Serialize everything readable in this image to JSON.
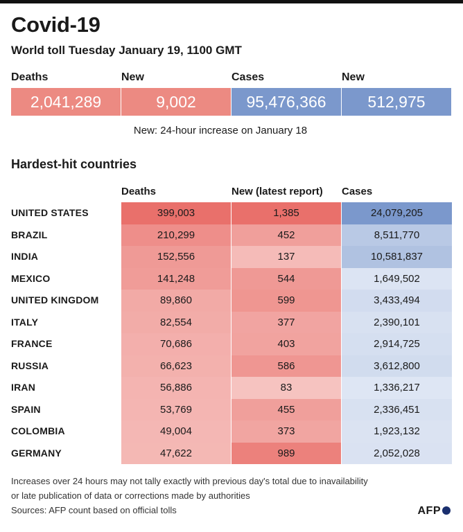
{
  "header": {
    "title": "Covid-19",
    "subtitle": "World toll Tuesday January 19, 1100 GMT"
  },
  "summary": {
    "labels": [
      "Deaths",
      "New",
      "Cases",
      "New"
    ],
    "values": [
      "2,041,289",
      "9,002",
      "95,476,366",
      "512,975"
    ],
    "colors": [
      "#ec8a82",
      "#ec8a82",
      "#7b98cc",
      "#7b98cc"
    ],
    "note": "New: 24-hour increase on January 18"
  },
  "table": {
    "section_title": "Hardest-hit countries",
    "headers": [
      "Deaths",
      "New (latest report)",
      "Cases"
    ],
    "rows": [
      {
        "country": "UNITED STATES",
        "deaths": "399,003",
        "new": "1,385",
        "cases": "24,079,205",
        "deaths_n": 399003,
        "new_n": 1385,
        "cases_n": 24079205
      },
      {
        "country": "BRAZIL",
        "deaths": "210,299",
        "new": "452",
        "cases": "8,511,770",
        "deaths_n": 210299,
        "new_n": 452,
        "cases_n": 8511770
      },
      {
        "country": "INDIA",
        "deaths": "152,556",
        "new": "137",
        "cases": "10,581,837",
        "deaths_n": 152556,
        "new_n": 137,
        "cases_n": 10581837
      },
      {
        "country": "MEXICO",
        "deaths": "141,248",
        "new": "544",
        "cases": "1,649,502",
        "deaths_n": 141248,
        "new_n": 544,
        "cases_n": 1649502
      },
      {
        "country": "UNITED KINGDOM",
        "deaths": "89,860",
        "new": "599",
        "cases": "3,433,494",
        "deaths_n": 89860,
        "new_n": 599,
        "cases_n": 3433494
      },
      {
        "country": "ITALY",
        "deaths": "82,554",
        "new": "377",
        "cases": "2,390,101",
        "deaths_n": 82554,
        "new_n": 377,
        "cases_n": 2390101
      },
      {
        "country": "FRANCE",
        "deaths": "70,686",
        "new": "403",
        "cases": "2,914,725",
        "deaths_n": 70686,
        "new_n": 403,
        "cases_n": 2914725
      },
      {
        "country": "RUSSIA",
        "deaths": "66,623",
        "new": "586",
        "cases": "3,612,800",
        "deaths_n": 66623,
        "new_n": 586,
        "cases_n": 3612800
      },
      {
        "country": "IRAN",
        "deaths": "56,886",
        "new": "83",
        "cases": "1,336,217",
        "deaths_n": 56886,
        "new_n": 83,
        "cases_n": 1336217
      },
      {
        "country": "SPAIN",
        "deaths": "53,769",
        "new": "455",
        "cases": "2,336,451",
        "deaths_n": 53769,
        "new_n": 455,
        "cases_n": 2336451
      },
      {
        "country": "COLOMBIA",
        "deaths": "49,004",
        "new": "373",
        "cases": "1,923,132",
        "deaths_n": 49004,
        "new_n": 373,
        "cases_n": 1923132
      },
      {
        "country": "GERMANY",
        "deaths": "47,622",
        "new": "989",
        "cases": "2,052,028",
        "deaths_n": 47622,
        "new_n": 989,
        "cases_n": 2052028
      }
    ],
    "red_color": "#e9706b",
    "blue_color": "#7b98cc"
  },
  "footer": {
    "note_line1": "Increases over 24 hours may not tally exactly with previous day's total due to inavailability",
    "note_line2": "or late publication of data or corrections made by authorities",
    "sources": "Sources: AFP count based on official tolls",
    "logo_text": "AFP"
  }
}
